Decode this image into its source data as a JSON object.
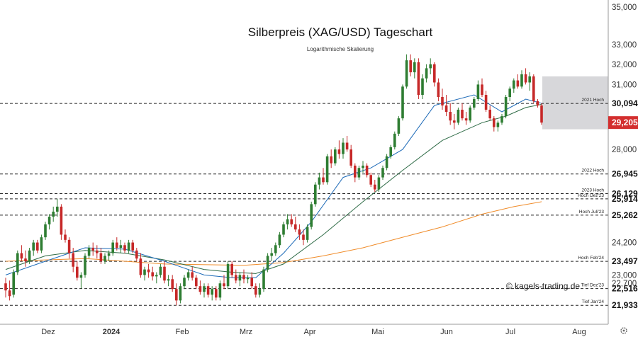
{
  "title": "Silberpreis (XAG/USD) Tageschart",
  "subtitle": "Logarithmische Skalierung",
  "watermark": "© kagels-trading.de",
  "settings_icon": "gear-icon",
  "chart_data": {
    "type": "candlestick",
    "scale": "log",
    "ylim": [
      21600,
      35000
    ],
    "x_tick_labels": [
      "Dez",
      "2024",
      "Feb",
      "Mrz",
      "Apr",
      "Mai",
      "Jun",
      "Jul",
      "Aug"
    ],
    "y_tick_labels": [
      {
        "v": 35000,
        "t": "35,000"
      },
      {
        "v": 33000,
        "t": "33,000"
      },
      {
        "v": 32000,
        "t": "32,000"
      },
      {
        "v": 31000,
        "t": "31,000"
      },
      {
        "v": 28000,
        "t": "28,000"
      },
      {
        "v": 24200,
        "t": "24,200"
      },
      {
        "v": 23000,
        "t": "23,000"
      },
      {
        "v": 22700,
        "t": "22,700"
      }
    ],
    "price_levels": [
      {
        "label": "2021 Hoch",
        "value": 30094,
        "text": "30,094"
      },
      {
        "label": "2022 Hoch",
        "value": 26945,
        "text": "26,945"
      },
      {
        "label": "2023 Hoch",
        "value": 26129,
        "text": "26,129"
      },
      {
        "label": "Hoch Dez'23",
        "value": 25914,
        "text": "25,914"
      },
      {
        "label": "Hoch Juli'23",
        "value": 25262,
        "text": "25,262"
      },
      {
        "label": "Hoch Feb'24",
        "value": 23497,
        "text": "23,497"
      },
      {
        "label": "Tief Dez'23",
        "value": 22516,
        "text": "22,516"
      },
      {
        "label": "Tief Jan'24",
        "value": 21933,
        "text": "21,933"
      }
    ],
    "current_price": {
      "value": 29205,
      "text": "29,205",
      "color": "#d32f2f"
    },
    "colors": {
      "up": "#2e7d32",
      "down": "#c62828",
      "ma_fast": "#1e6bb8",
      "ma_mid": "#2e6b46",
      "ma_slow": "#f08c2a",
      "zone": "#c9c9ce"
    },
    "candles": [
      [
        0,
        22700,
        22900,
        22200,
        22450
      ],
      [
        1,
        22450,
        22800,
        22100,
        22250
      ],
      [
        2,
        22300,
        23200,
        22200,
        23100
      ],
      [
        3,
        23100,
        23900,
        23000,
        23800
      ],
      [
        4,
        23800,
        24100,
        23500,
        23600
      ],
      [
        5,
        23600,
        23900,
        23300,
        23500
      ],
      [
        6,
        23500,
        24000,
        23400,
        23900
      ],
      [
        7,
        23900,
        24300,
        23700,
        24200
      ],
      [
        8,
        24200,
        24300,
        23800,
        23900
      ],
      [
        9,
        23900,
        24500,
        23800,
        24400
      ],
      [
        10,
        24400,
        25000,
        24300,
        24900
      ],
      [
        11,
        24900,
        25300,
        24700,
        25200
      ],
      [
        12,
        25200,
        25600,
        25000,
        25400
      ],
      [
        13,
        25400,
        25914,
        25200,
        25600
      ],
      [
        14,
        25600,
        25700,
        24300,
        24500
      ],
      [
        15,
        24500,
        24700,
        24200,
        24300
      ],
      [
        16,
        24300,
        24400,
        23600,
        23800
      ],
      [
        17,
        23800,
        24000,
        23100,
        23300
      ],
      [
        18,
        23300,
        23500,
        22800,
        22900
      ],
      [
        19,
        22900,
        23100,
        22516,
        23000
      ],
      [
        20,
        23000,
        23800,
        22900,
        23700
      ],
      [
        21,
        23700,
        24100,
        23600,
        24000
      ],
      [
        22,
        24000,
        24200,
        23700,
        23900
      ],
      [
        23,
        23900,
        24100,
        23600,
        23800
      ],
      [
        24,
        23800,
        24000,
        23400,
        23500
      ],
      [
        25,
        23500,
        23800,
        23400,
        23700
      ],
      [
        26,
        23700,
        23900,
        23500,
        23800
      ],
      [
        27,
        23800,
        24300,
        23700,
        24200
      ],
      [
        28,
        24200,
        24400,
        23900,
        24000
      ],
      [
        29,
        24000,
        24300,
        23800,
        24100
      ],
      [
        30,
        24100,
        24200,
        23800,
        23900
      ],
      [
        31,
        23900,
        24300,
        23800,
        24200
      ],
      [
        32,
        24200,
        24300,
        23800,
        23900
      ],
      [
        33,
        23900,
        24000,
        23500,
        23600
      ],
      [
        34,
        23600,
        23800,
        22900,
        23000
      ],
      [
        35,
        23000,
        23300,
        22800,
        23200
      ],
      [
        36,
        23200,
        23400,
        22900,
        23100
      ],
      [
        37,
        23100,
        23300,
        22800,
        22950
      ],
      [
        38,
        22950,
        23100,
        22700,
        23000
      ],
      [
        39,
        23000,
        23400,
        22900,
        23300
      ],
      [
        40,
        23300,
        23500,
        22700,
        22800
      ],
      [
        41,
        22800,
        23000,
        22600,
        22850
      ],
      [
        42,
        22850,
        23000,
        22400,
        22500
      ],
      [
        43,
        22500,
        22700,
        21933,
        22100
      ],
      [
        44,
        22100,
        22700,
        22000,
        22600
      ],
      [
        45,
        22600,
        23000,
        22500,
        22900
      ],
      [
        46,
        22900,
        23200,
        22800,
        23100
      ],
      [
        47,
        23100,
        23300,
        22800,
        22900
      ],
      [
        48,
        22900,
        23000,
        22500,
        22600
      ],
      [
        49,
        22600,
        22800,
        22300,
        22400
      ],
      [
        50,
        22400,
        22700,
        22200,
        22600
      ],
      [
        51,
        22600,
        22700,
        22200,
        22300
      ],
      [
        52,
        22300,
        22600,
        22100,
        22500
      ],
      [
        53,
        22500,
        22600,
        22100,
        22200
      ],
      [
        54,
        22200,
        22800,
        22100,
        22700
      ],
      [
        55,
        22700,
        23000,
        22500,
        22600
      ],
      [
        56,
        22600,
        23497,
        22500,
        23400
      ],
      [
        57,
        23400,
        23500,
        22900,
        23000
      ],
      [
        58,
        23000,
        23200,
        22700,
        22800
      ],
      [
        59,
        22800,
        23100,
        22600,
        23000
      ],
      [
        60,
        23000,
        23200,
        22700,
        22850
      ],
      [
        61,
        22850,
        23000,
        22700,
        22900
      ],
      [
        62,
        22900,
        23100,
        22500,
        22600
      ],
      [
        63,
        22600,
        22700,
        22200,
        22300
      ],
      [
        64,
        22300,
        22700,
        22200,
        22500
      ],
      [
        65,
        22500,
        23300,
        22400,
        23200
      ],
      [
        66,
        23200,
        23800,
        23100,
        23700
      ],
      [
        67,
        23700,
        24000,
        23500,
        23800
      ],
      [
        68,
        23800,
        24200,
        23700,
        24100
      ],
      [
        69,
        24100,
        24600,
        24000,
        24500
      ],
      [
        70,
        24500,
        25000,
        24400,
        24900
      ],
      [
        71,
        24900,
        25300,
        24700,
        25100
      ],
      [
        72,
        25100,
        25300,
        24800,
        24900
      ],
      [
        73,
        24900,
        25200,
        24600,
        24700
      ],
      [
        74,
        24700,
        24900,
        24300,
        24500
      ],
      [
        75,
        24500,
        24700,
        24100,
        24300
      ],
      [
        76,
        24300,
        24900,
        24200,
        24800
      ],
      [
        77,
        24800,
        25800,
        24700,
        25700
      ],
      [
        78,
        25700,
        26600,
        25600,
        26500
      ],
      [
        79,
        26500,
        27000,
        26300,
        26800
      ],
      [
        80,
        26800,
        27200,
        26500,
        26600
      ],
      [
        81,
        26600,
        27800,
        26500,
        27700
      ],
      [
        82,
        27700,
        28000,
        27200,
        27400
      ],
      [
        83,
        27400,
        28100,
        27300,
        28000
      ],
      [
        84,
        28000,
        28400,
        27600,
        27800
      ],
      [
        85,
        27800,
        28500,
        27600,
        28300
      ],
      [
        86,
        28300,
        28600,
        27900,
        28000
      ],
      [
        87,
        28000,
        28200,
        27200,
        27300
      ],
      [
        88,
        27300,
        27400,
        26600,
        26800
      ],
      [
        89,
        26800,
        27300,
        26700,
        27200
      ],
      [
        90,
        27200,
        27500,
        27000,
        27300
      ],
      [
        91,
        27300,
        27400,
        26800,
        26900
      ],
      [
        92,
        26900,
        27000,
        26400,
        26500
      ],
      [
        93,
        26500,
        26700,
        26200,
        26300
      ],
      [
        94,
        26300,
        26900,
        26200,
        26800
      ],
      [
        95,
        26800,
        27300,
        26700,
        27200
      ],
      [
        96,
        27200,
        27800,
        27100,
        27700
      ],
      [
        97,
        27700,
        28200,
        27600,
        28100
      ],
      [
        98,
        28100,
        28800,
        28000,
        28700
      ],
      [
        99,
        28700,
        29500,
        28600,
        29400
      ],
      [
        100,
        29400,
        31000,
        29300,
        30900
      ],
      [
        101,
        30900,
        32500,
        30800,
        32200
      ],
      [
        102,
        32200,
        32500,
        31400,
        31600
      ],
      [
        103,
        31600,
        32300,
        31300,
        32100
      ],
      [
        104,
        32100,
        32300,
        30300,
        30500
      ],
      [
        105,
        30500,
        31500,
        30300,
        31300
      ],
      [
        106,
        31300,
        32000,
        31100,
        31800
      ],
      [
        107,
        31800,
        32300,
        31500,
        32000
      ],
      [
        108,
        32000,
        32100,
        30900,
        31100
      ],
      [
        109,
        31100,
        31300,
        30200,
        30400
      ],
      [
        110,
        30400,
        30800,
        29800,
        30000
      ],
      [
        111,
        30000,
        30500,
        29500,
        29700
      ],
      [
        112,
        29700,
        30100,
        29100,
        29300
      ],
      [
        113,
        29300,
        29600,
        28900,
        29200
      ],
      [
        114,
        29200,
        29900,
        29100,
        29800
      ],
      [
        115,
        29800,
        30100,
        29300,
        29400
      ],
      [
        116,
        29400,
        29700,
        29100,
        29300
      ],
      [
        117,
        29300,
        30000,
        29200,
        29900
      ],
      [
        118,
        29900,
        30400,
        29800,
        30300
      ],
      [
        119,
        30300,
        31200,
        30200,
        31000
      ],
      [
        120,
        31000,
        31300,
        30400,
        30500
      ],
      [
        121,
        30500,
        30700,
        29700,
        29800
      ],
      [
        122,
        29800,
        30000,
        29300,
        29400
      ],
      [
        123,
        29400,
        29500,
        28800,
        29000
      ],
      [
        124,
        29000,
        29300,
        28800,
        29200
      ],
      [
        125,
        29200,
        29600,
        29100,
        29500
      ],
      [
        126,
        29500,
        30500,
        29400,
        30400
      ],
      [
        127,
        30400,
        30900,
        30200,
        30800
      ],
      [
        128,
        30800,
        31300,
        30600,
        31200
      ],
      [
        129,
        31200,
        31500,
        30800,
        30900
      ],
      [
        130,
        30900,
        31700,
        30800,
        31500
      ],
      [
        131,
        31500,
        31800,
        31000,
        31100
      ],
      [
        132,
        31100,
        31600,
        30700,
        31400
      ],
      [
        133,
        31400,
        31500,
        30100,
        30200
      ],
      [
        134,
        30200,
        30300,
        29900,
        30000
      ],
      [
        135,
        30000,
        30100,
        29100,
        29205
      ]
    ],
    "ma_fast_values": [
      [
        0,
        23000
      ],
      [
        10,
        23500
      ],
      [
        20,
        24000
      ],
      [
        30,
        23950
      ],
      [
        40,
        23500
      ],
      [
        50,
        23000
      ],
      [
        57,
        22900
      ],
      [
        63,
        22900
      ],
      [
        70,
        23800
      ],
      [
        77,
        25000
      ],
      [
        85,
        26800
      ],
      [
        92,
        27200
      ],
      [
        100,
        28000
      ],
      [
        108,
        30000
      ],
      [
        118,
        30500
      ],
      [
        125,
        29700
      ],
      [
        131,
        30300
      ],
      [
        135,
        30100
      ]
    ],
    "ma_mid_values": [
      [
        0,
        23200
      ],
      [
        10,
        23700
      ],
      [
        20,
        23900
      ],
      [
        30,
        23800
      ],
      [
        40,
        23550
      ],
      [
        50,
        23200
      ],
      [
        57,
        23100
      ],
      [
        63,
        23050
      ],
      [
        70,
        23400
      ],
      [
        80,
        24500
      ],
      [
        90,
        25800
      ],
      [
        100,
        27100
      ],
      [
        110,
        28400
      ],
      [
        120,
        29200
      ],
      [
        126,
        29500
      ],
      [
        131,
        29900
      ],
      [
        135,
        30050
      ]
    ],
    "ma_slow_values": [
      [
        0,
        23500
      ],
      [
        20,
        23600
      ],
      [
        40,
        23400
      ],
      [
        60,
        23350
      ],
      [
        70,
        23450
      ],
      [
        80,
        23700
      ],
      [
        90,
        24000
      ],
      [
        100,
        24400
      ],
      [
        110,
        24800
      ],
      [
        120,
        25300
      ],
      [
        128,
        25600
      ],
      [
        135,
        25800
      ]
    ]
  }
}
